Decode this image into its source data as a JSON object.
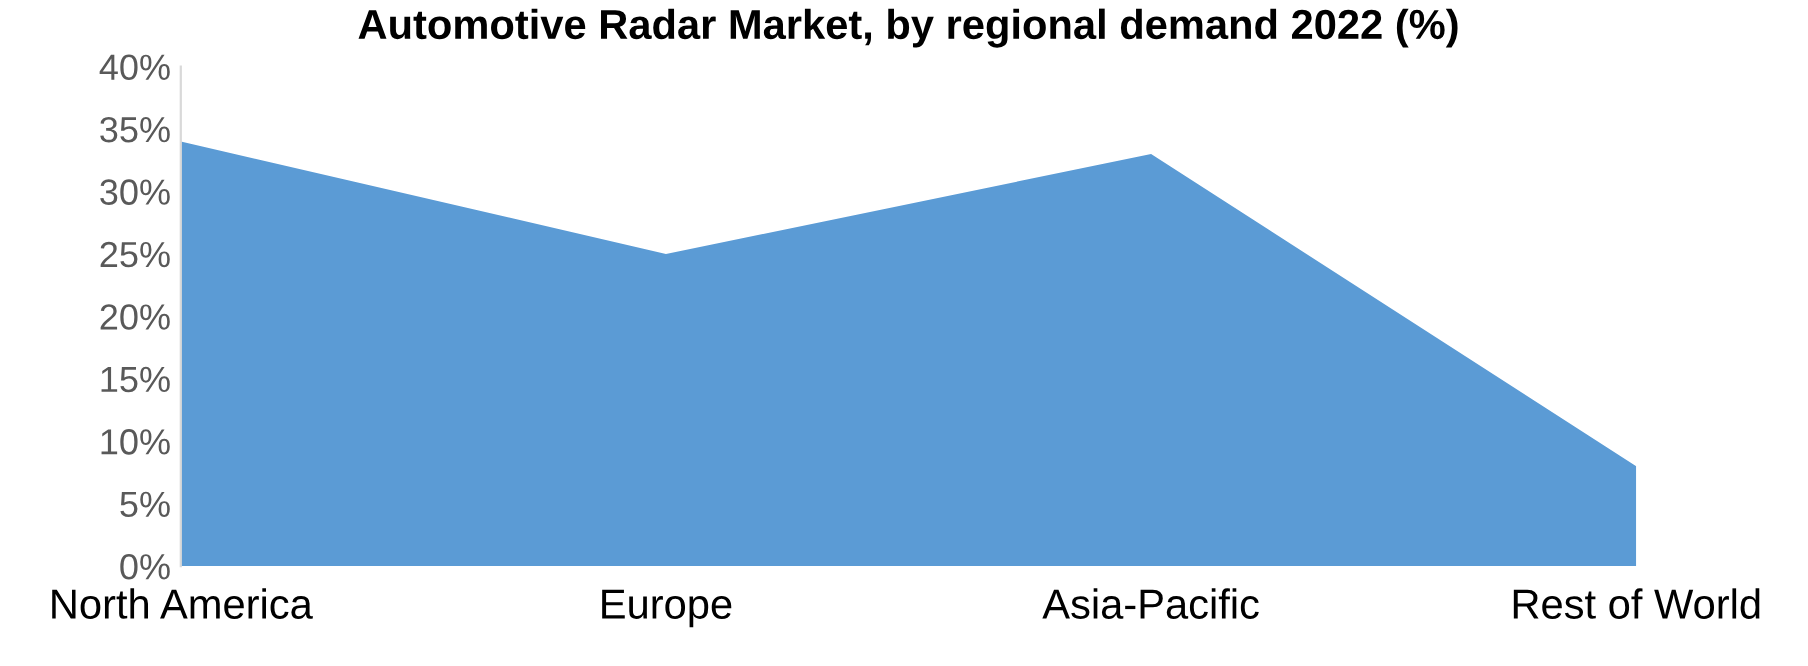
{
  "chart_data": {
    "type": "area",
    "title": "Automotive Radar Market, by regional demand 2022 (%)",
    "categories": [
      "North America",
      "Europe",
      "Asia-Pacific",
      "Rest of World"
    ],
    "series": [
      {
        "color": "#5b9bd5",
        "values": [
          34,
          25,
          33,
          8
        ]
      }
    ],
    "ylim": [
      0,
      40
    ],
    "yticks": [
      {
        "value": 0,
        "label": "0%"
      },
      {
        "value": 5,
        "label": "5%"
      },
      {
        "value": 10,
        "label": "10%"
      },
      {
        "value": 15,
        "label": "15%"
      },
      {
        "value": 20,
        "label": "20%"
      },
      {
        "value": 25,
        "label": "25%"
      },
      {
        "value": 30,
        "label": "30%"
      },
      {
        "value": 35,
        "label": "35%"
      },
      {
        "value": 40,
        "label": "40%"
      }
    ],
    "grid": false
  }
}
